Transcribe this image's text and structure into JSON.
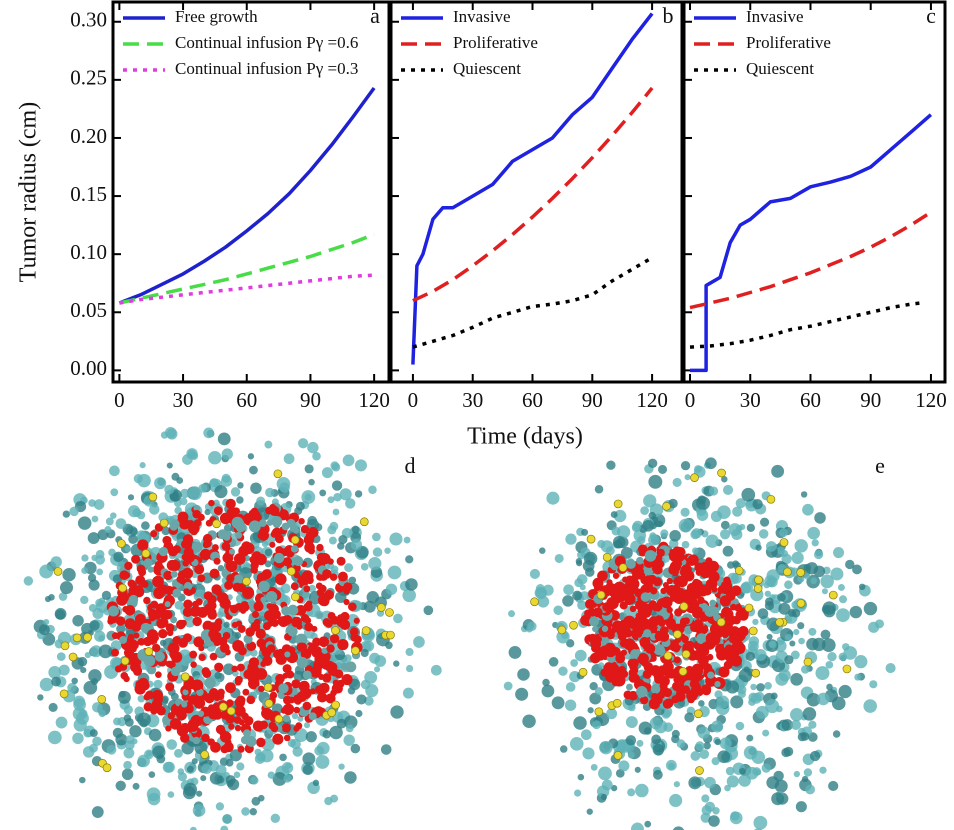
{
  "chart_data": [
    {
      "type": "line",
      "panel_label": "a",
      "ylabel": "Tumor radius (cm)",
      "xlim": [
        -3,
        127
      ],
      "ylim": [
        -0.01,
        0.317
      ],
      "xticks": [
        0,
        30,
        60,
        90,
        120
      ],
      "yticks": [
        {
          "value": 0,
          "label": "0.00"
        },
        {
          "value": 0.05,
          "label": "0.05"
        },
        {
          "value": 0.1,
          "label": "0.10"
        },
        {
          "value": 0.15,
          "label": "0.15"
        },
        {
          "value": 0.2,
          "label": "0.20"
        },
        {
          "value": 0.25,
          "label": "0.25"
        },
        {
          "value": 0.3,
          "label": "0.30"
        }
      ],
      "ytick_labels": true,
      "legend": "upper left",
      "series": [
        {
          "name": "Free growth",
          "color": "#1f22cc",
          "style": "solid",
          "x": [
            0,
            10,
            20,
            30,
            40,
            50,
            60,
            70,
            80,
            90,
            100,
            110,
            120
          ],
          "values": [
            0.058,
            0.065,
            0.074,
            0.083,
            0.094,
            0.106,
            0.12,
            0.135,
            0.152,
            0.172,
            0.194,
            0.218,
            0.243
          ]
        },
        {
          "name": "Continual infusion Pγ =0.6",
          "color": "#48dc48",
          "style": "dashed",
          "x": [
            0,
            10,
            20,
            30,
            40,
            50,
            60,
            70,
            80,
            90,
            100,
            110,
            120
          ],
          "values": [
            0.058,
            0.062,
            0.066,
            0.07,
            0.074,
            0.078,
            0.083,
            0.088,
            0.093,
            0.098,
            0.104,
            0.11,
            0.117
          ]
        },
        {
          "name": "Continual infusion Pγ =0.3",
          "color": "#e03ce0",
          "style": "dotted",
          "x": [
            0,
            10,
            20,
            30,
            40,
            50,
            60,
            70,
            80,
            90,
            100,
            110,
            120
          ],
          "values": [
            0.058,
            0.061,
            0.063,
            0.065,
            0.067,
            0.069,
            0.071,
            0.073,
            0.075,
            0.077,
            0.079,
            0.081,
            0.082
          ]
        }
      ]
    },
    {
      "type": "line",
      "panel_label": "b",
      "xlabel": "Time (days)",
      "xlim": [
        -11,
        135
      ],
      "ylim": [
        -0.01,
        0.317
      ],
      "xticks": [
        0,
        30,
        60,
        90,
        120
      ],
      "yticks": [
        0,
        0.05,
        0.1,
        0.15,
        0.2,
        0.25,
        0.3
      ],
      "ytick_labels": false,
      "legend": "upper left",
      "series": [
        {
          "name": "Invasive",
          "color": "#1f22e0",
          "style": "solid",
          "x": [
            0,
            2,
            5,
            10,
            15,
            20,
            30,
            40,
            50,
            60,
            70,
            80,
            90,
            100,
            110,
            120
          ],
          "values": [
            0.005,
            0.09,
            0.1,
            0.13,
            0.14,
            0.14,
            0.15,
            0.16,
            0.18,
            0.19,
            0.2,
            0.22,
            0.235,
            0.26,
            0.285,
            0.307
          ]
        },
        {
          "name": "Proliferative",
          "color": "#e02020",
          "style": "dashed",
          "x": [
            0,
            10,
            20,
            30,
            40,
            50,
            60,
            70,
            80,
            90,
            100,
            110,
            120
          ],
          "values": [
            0.06,
            0.068,
            0.078,
            0.09,
            0.103,
            0.117,
            0.132,
            0.148,
            0.165,
            0.183,
            0.202,
            0.222,
            0.243
          ]
        },
        {
          "name": "Quiescent",
          "color": "#000000",
          "style": "dotted",
          "x": [
            0,
            10,
            20,
            30,
            40,
            50,
            60,
            70,
            80,
            90,
            100,
            110,
            120
          ],
          "values": [
            0.02,
            0.025,
            0.03,
            0.037,
            0.045,
            0.05,
            0.055,
            0.057,
            0.06,
            0.065,
            0.077,
            0.087,
            0.097
          ]
        }
      ]
    },
    {
      "type": "line",
      "panel_label": "c",
      "xlim": [
        -3,
        127
      ],
      "ylim": [
        -0.01,
        0.317
      ],
      "xticks": [
        0,
        30,
        60,
        90,
        120
      ],
      "yticks": [
        0,
        0.05,
        0.1,
        0.15,
        0.2,
        0.25,
        0.3
      ],
      "ytick_labels": false,
      "legend": "upper left",
      "series": [
        {
          "name": "Invasive",
          "color": "#1f22e0",
          "style": "solid",
          "x": [
            0,
            8,
            8,
            10,
            15,
            20,
            25,
            30,
            40,
            50,
            60,
            70,
            80,
            90,
            100,
            110,
            120
          ],
          "values": [
            0,
            0,
            0.073,
            0.075,
            0.08,
            0.11,
            0.125,
            0.13,
            0.145,
            0.148,
            0.158,
            0.162,
            0.167,
            0.175,
            0.19,
            0.205,
            0.22
          ]
        },
        {
          "name": "Proliferative",
          "color": "#e02020",
          "style": "dashed",
          "x": [
            0,
            10,
            20,
            30,
            40,
            50,
            60,
            70,
            80,
            90,
            100,
            110,
            120
          ],
          "values": [
            0.054,
            0.058,
            0.062,
            0.067,
            0.072,
            0.078,
            0.084,
            0.091,
            0.098,
            0.106,
            0.115,
            0.125,
            0.136
          ]
        },
        {
          "name": "Quiescent",
          "color": "#000000",
          "style": "dotted",
          "x": [
            0,
            10,
            20,
            30,
            40,
            50,
            60,
            70,
            80,
            90,
            100,
            110,
            115
          ],
          "values": [
            0.02,
            0.021,
            0.023,
            0.026,
            0.03,
            0.035,
            0.038,
            0.042,
            0.046,
            0.05,
            0.054,
            0.057,
            0.058
          ]
        }
      ]
    }
  ],
  "images": [
    {
      "label": "d"
    },
    {
      "label": "e"
    }
  ]
}
